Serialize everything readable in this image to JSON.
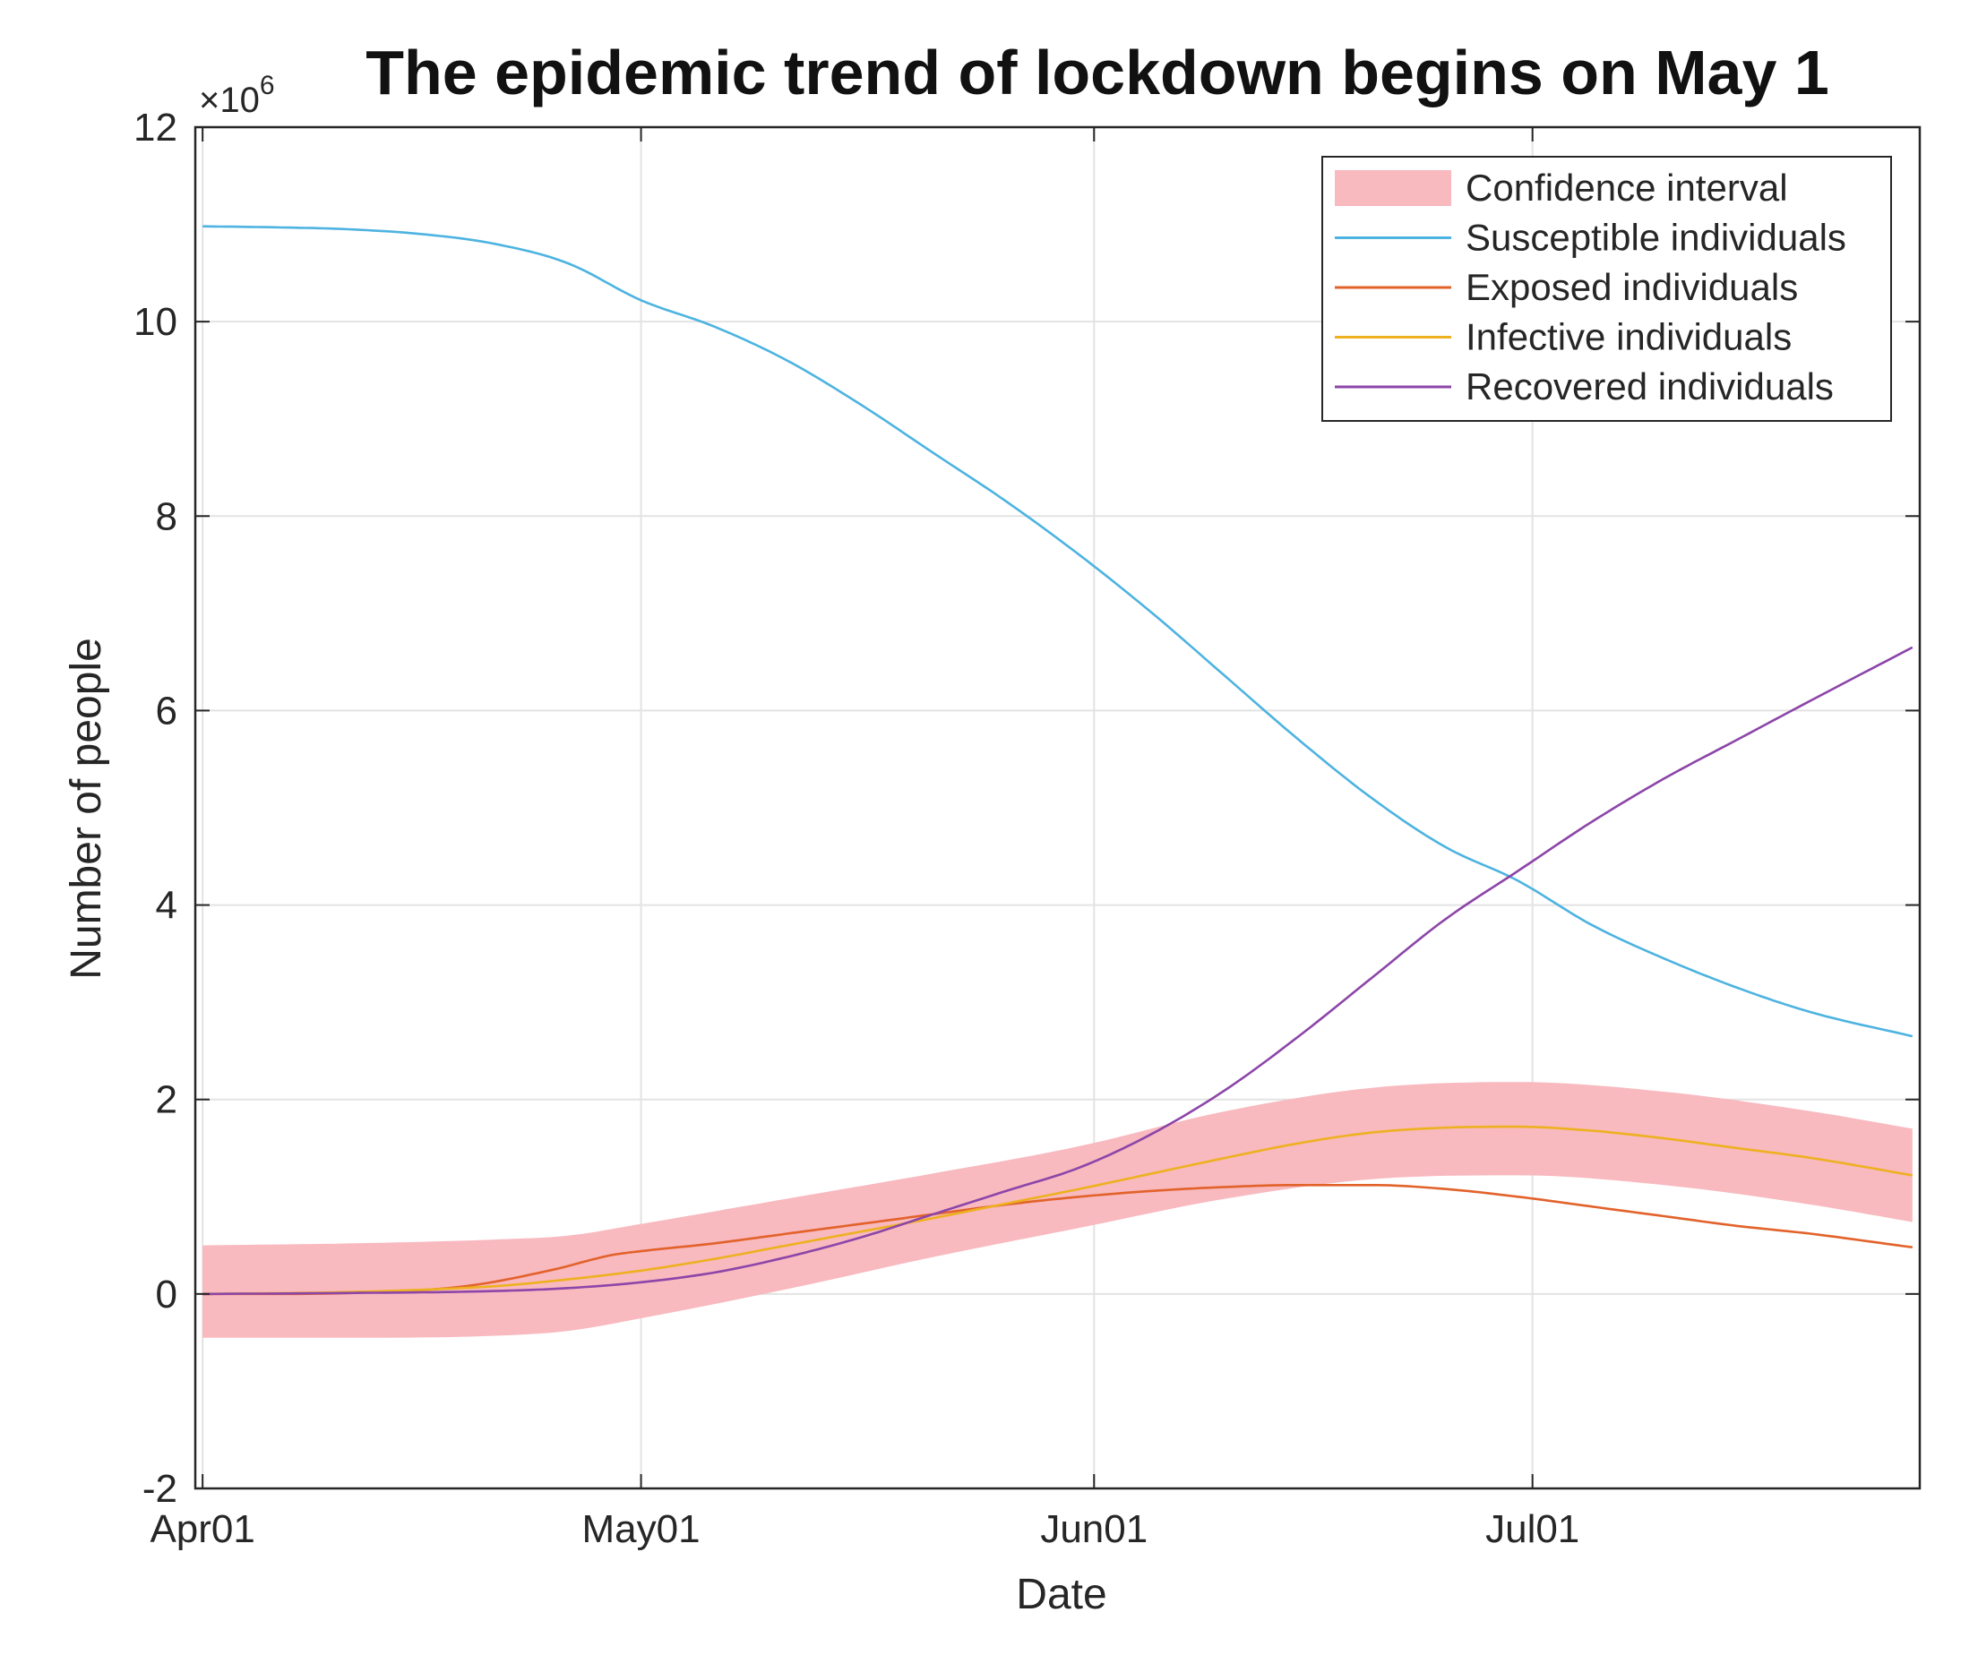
{
  "chart_data": {
    "type": "line",
    "title": "The epidemic trend of lockdown begins on May 1",
    "xlabel": "Date",
    "ylabel": "Number of people",
    "y_multiplier_label": "×10",
    "y_multiplier_exponent": "6",
    "x_unit": "days since Apr01",
    "xlim": [
      -0.5,
      117.5
    ],
    "ylim": [
      -2,
      12
    ],
    "x_ticks": [
      {
        "value": 0,
        "label": "Apr01"
      },
      {
        "value": 30,
        "label": "May01"
      },
      {
        "value": 61,
        "label": "Jun01"
      },
      {
        "value": 91,
        "label": "Jul01"
      }
    ],
    "y_ticks": [
      {
        "value": -2,
        "label": "-2"
      },
      {
        "value": 0,
        "label": "0"
      },
      {
        "value": 2,
        "label": "2"
      },
      {
        "value": 4,
        "label": "4"
      },
      {
        "value": 6,
        "label": "6"
      },
      {
        "value": 8,
        "label": "8"
      },
      {
        "value": 10,
        "label": "10"
      },
      {
        "value": 12,
        "label": "12"
      }
    ],
    "grid": true,
    "legend_position": "top-right",
    "confidence_interval": {
      "name": "Confidence interval",
      "color": "#f8b9bf",
      "x": [
        0,
        10,
        20,
        25,
        30,
        40,
        50,
        60,
        70,
        80,
        90,
        100,
        110,
        117
      ],
      "lower": [
        -0.45,
        -0.45,
        -0.43,
        -0.38,
        -0.25,
        0.05,
        0.38,
        0.68,
        0.98,
        1.18,
        1.22,
        1.12,
        0.92,
        0.74
      ],
      "upper": [
        0.5,
        0.52,
        0.56,
        0.6,
        0.72,
        0.98,
        1.24,
        1.52,
        1.88,
        2.12,
        2.18,
        2.08,
        1.88,
        1.7
      ]
    },
    "series": [
      {
        "name": "Susceptible individuals",
        "color": "#4db3e0",
        "x": [
          0,
          5,
          10,
          15,
          20,
          25,
          30,
          35,
          40,
          45,
          50,
          55,
          60,
          65,
          70,
          75,
          80,
          85,
          90,
          95,
          100,
          105,
          110,
          117
        ],
        "y": [
          10.98,
          10.97,
          10.95,
          10.9,
          10.8,
          10.6,
          10.22,
          9.95,
          9.6,
          9.15,
          8.65,
          8.15,
          7.6,
          7.0,
          6.35,
          5.7,
          5.1,
          4.6,
          4.25,
          3.8,
          3.45,
          3.15,
          2.9,
          2.65
        ]
      },
      {
        "name": "Exposed individuals",
        "color": "#e2622a",
        "x": [
          0,
          10,
          18,
          24,
          28,
          30,
          35,
          40,
          45,
          50,
          55,
          60,
          65,
          70,
          75,
          80,
          85,
          90,
          95,
          100,
          105,
          110,
          117
        ],
        "y": [
          0.0,
          0.01,
          0.08,
          0.25,
          0.4,
          0.44,
          0.52,
          0.62,
          0.72,
          0.82,
          0.92,
          1.0,
          1.06,
          1.1,
          1.12,
          1.12,
          1.08,
          1.0,
          0.9,
          0.8,
          0.7,
          0.62,
          0.48
        ]
      },
      {
        "name": "Infective individuals",
        "color": "#edb120",
        "x": [
          0,
          10,
          20,
          25,
          30,
          35,
          40,
          45,
          50,
          55,
          60,
          65,
          70,
          75,
          80,
          85,
          90,
          95,
          100,
          105,
          110,
          117
        ],
        "y": [
          0.0,
          0.02,
          0.08,
          0.15,
          0.24,
          0.36,
          0.5,
          0.64,
          0.78,
          0.93,
          1.08,
          1.24,
          1.4,
          1.55,
          1.66,
          1.71,
          1.72,
          1.68,
          1.6,
          1.5,
          1.4,
          1.22
        ]
      },
      {
        "name": "Recovered individuals",
        "color": "#8c45a8",
        "x": [
          0,
          10,
          20,
          25,
          30,
          35,
          40,
          45,
          50,
          55,
          60,
          65,
          70,
          75,
          80,
          85,
          90,
          95,
          100,
          105,
          110,
          117
        ],
        "y": [
          0.0,
          0.01,
          0.03,
          0.06,
          0.12,
          0.22,
          0.38,
          0.58,
          0.82,
          1.06,
          1.3,
          1.65,
          2.1,
          2.65,
          3.25,
          3.85,
          4.35,
          4.85,
          5.3,
          5.7,
          6.1,
          6.65
        ]
      }
    ]
  }
}
